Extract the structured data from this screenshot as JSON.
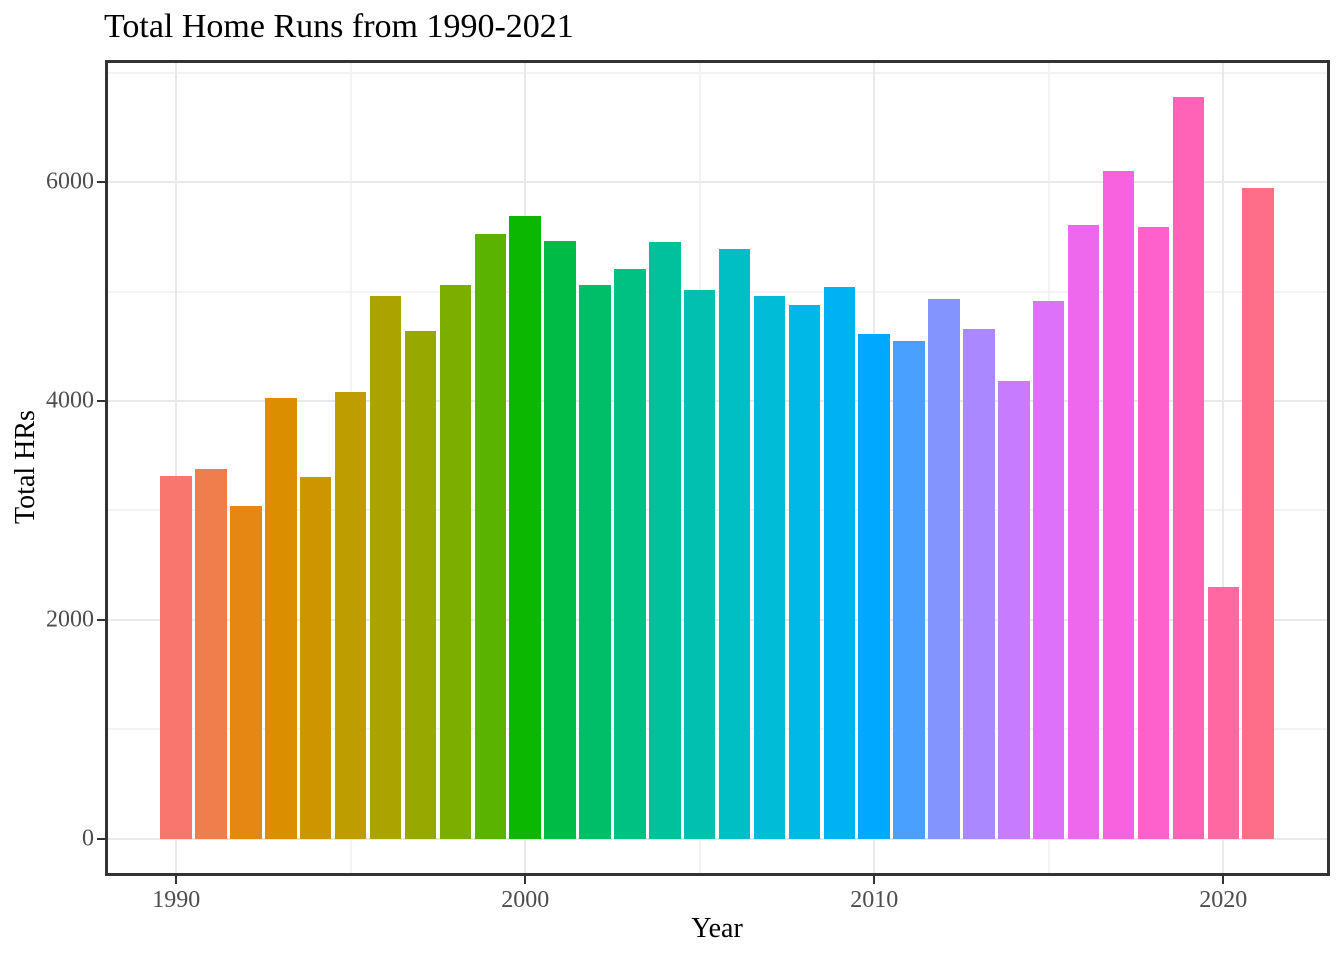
{
  "chart_data": {
    "type": "bar",
    "title": "Total Home Runs from 1990-2021",
    "xlabel": "Year",
    "ylabel": "Total HRs",
    "categories": [
      1990,
      1991,
      1992,
      1993,
      1994,
      1995,
      1996,
      1997,
      1998,
      1999,
      2000,
      2001,
      2002,
      2003,
      2004,
      2005,
      2006,
      2007,
      2008,
      2009,
      2010,
      2011,
      2012,
      2013,
      2014,
      2015,
      2016,
      2017,
      2018,
      2019,
      2020,
      2021
    ],
    "values": [
      3317,
      3383,
      3038,
      4030,
      3306,
      4081,
      4962,
      4640,
      5064,
      5528,
      5693,
      5458,
      5059,
      5207,
      5451,
      5017,
      5386,
      4957,
      4878,
      5042,
      4613,
      4552,
      4934,
      4661,
      4186,
      4909,
      5610,
      6105,
      5585,
      6776,
      2304,
      5944
    ],
    "x_ticks": [
      1990,
      2000,
      2010,
      2020
    ],
    "x_minor_ticks": [
      1995,
      2005,
      2015
    ],
    "y_ticks": [
      0,
      2000,
      4000,
      6000
    ],
    "y_minor_ticks": [
      1000,
      3000,
      5000,
      7000
    ],
    "xlim": [
      1987.96,
      2023.06
    ],
    "ylim": [
      -339,
      7115
    ],
    "bar_width_fraction": 0.9,
    "grid": true,
    "legend_position": "none",
    "palette": {
      "name": "ggplot2-hue-hcl",
      "hue_start": 15,
      "hue_step": 11.25,
      "chroma": 100,
      "luminance": 65,
      "first_color": "#F8766D"
    },
    "colors": {
      "background": "#ffffff",
      "panel_border": "#333333",
      "grid_major": "#e9e9e9",
      "grid_minor": "#f3f3f3",
      "axis_text": "#4d4d4d",
      "axis_tick": "#333333",
      "title_text": "#000000"
    }
  }
}
